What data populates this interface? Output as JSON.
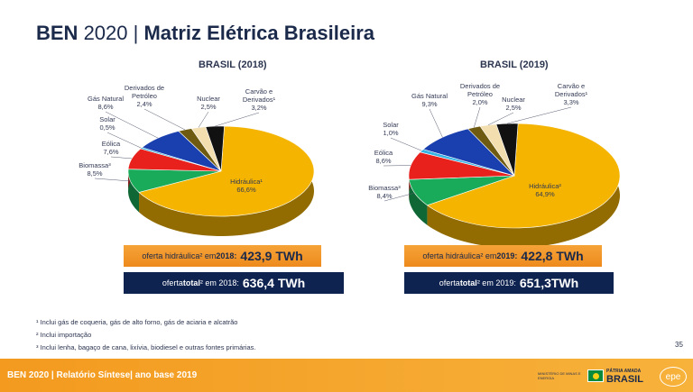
{
  "header": {
    "title_bold": "BEN",
    "title_rest": " 2020 | ",
    "title_bold2": "Matriz Elétrica Brasileira"
  },
  "chart_data": [
    {
      "type": "pie",
      "title": "BRASIL (2018)",
      "slices": [
        {
          "name": "Hidráulica¹",
          "value": 66.6,
          "label": "66,6%",
          "color": "#f4b400"
        },
        {
          "name": "Biomassa³",
          "value": 8.5,
          "label": "8,5%",
          "color": "#1aab5a"
        },
        {
          "name": "Eólica",
          "value": 7.6,
          "label": "7,6%",
          "color": "#e8211c"
        },
        {
          "name": "Solar",
          "value": 0.5,
          "label": "0,5%",
          "color": "#36b4e6"
        },
        {
          "name": "Gás Natural",
          "value": 8.6,
          "label": "8,6%",
          "color": "#1a3fae"
        },
        {
          "name": "Derivados de Petróleo",
          "value": 2.4,
          "label": "2,4%",
          "color": "#6e5a10"
        },
        {
          "name": "Nuclear",
          "value": 2.5,
          "label": "2,5%",
          "color": "#f3deb0"
        },
        {
          "name": "Carvão e Derivados¹",
          "value": 3.2,
          "label": "3,2%",
          "color": "#111111"
        }
      ],
      "offer_hydro": {
        "prefix": "oferta hidráulica² em ",
        "year": "2018",
        "colon": ":",
        "value": "423,9 TWh"
      },
      "offer_total": {
        "prefix": "oferta ",
        "bold": "total",
        "suffix": "² em 2018:",
        "value": "636,4 TWh"
      }
    },
    {
      "type": "pie",
      "title": "BRASIL (2019)",
      "slices": [
        {
          "name": "Hidráulica²",
          "value": 64.9,
          "label": "64,9%",
          "color": "#f4b400"
        },
        {
          "name": "Biomassa³",
          "value": 8.4,
          "label": "8,4%",
          "color": "#1aab5a"
        },
        {
          "name": "Eólica",
          "value": 8.6,
          "label": "8,6%",
          "color": "#e8211c"
        },
        {
          "name": "Solar",
          "value": 1.0,
          "label": "1,0%",
          "color": "#36b4e6"
        },
        {
          "name": "Gás Natural",
          "value": 9.3,
          "label": "9,3%",
          "color": "#1a3fae"
        },
        {
          "name": "Derivados de Petróleo",
          "value": 2.0,
          "label": "2,0%",
          "color": "#6e5a10"
        },
        {
          "name": "Nuclear",
          "value": 2.5,
          "label": "2,5%",
          "color": "#f3deb0"
        },
        {
          "name": "Carvão e Derivados¹",
          "value": 3.3,
          "label": "3,3%",
          "color": "#111111"
        }
      ],
      "offer_hydro": {
        "prefix": "oferta hidráulica² em ",
        "year": "2019",
        "colon": ":",
        "value": "422,8 TWh"
      },
      "offer_total": {
        "prefix": "oferta ",
        "bold": "total",
        "suffix": "² em 2019:",
        "value": "651,3TWh"
      }
    }
  ],
  "notes": [
    "¹ Inclui gás de coqueria, gás de alto forno, gás de aciaria e alcatrão",
    "² Inclui importação",
    "³ Inclui lenha, bagaço de cana, lixívia, biodiesel e outras fontes primárias."
  ],
  "page_number": "35",
  "footer": {
    "text": "BEN 2020 | Relatório Síntese| ano base 2019",
    "ministry": "MINISTÉRIO DE MINAS E ENERGIA",
    "patria": "PÁTRIA AMADA",
    "brasil": "BRASIL",
    "epe": "epe"
  }
}
